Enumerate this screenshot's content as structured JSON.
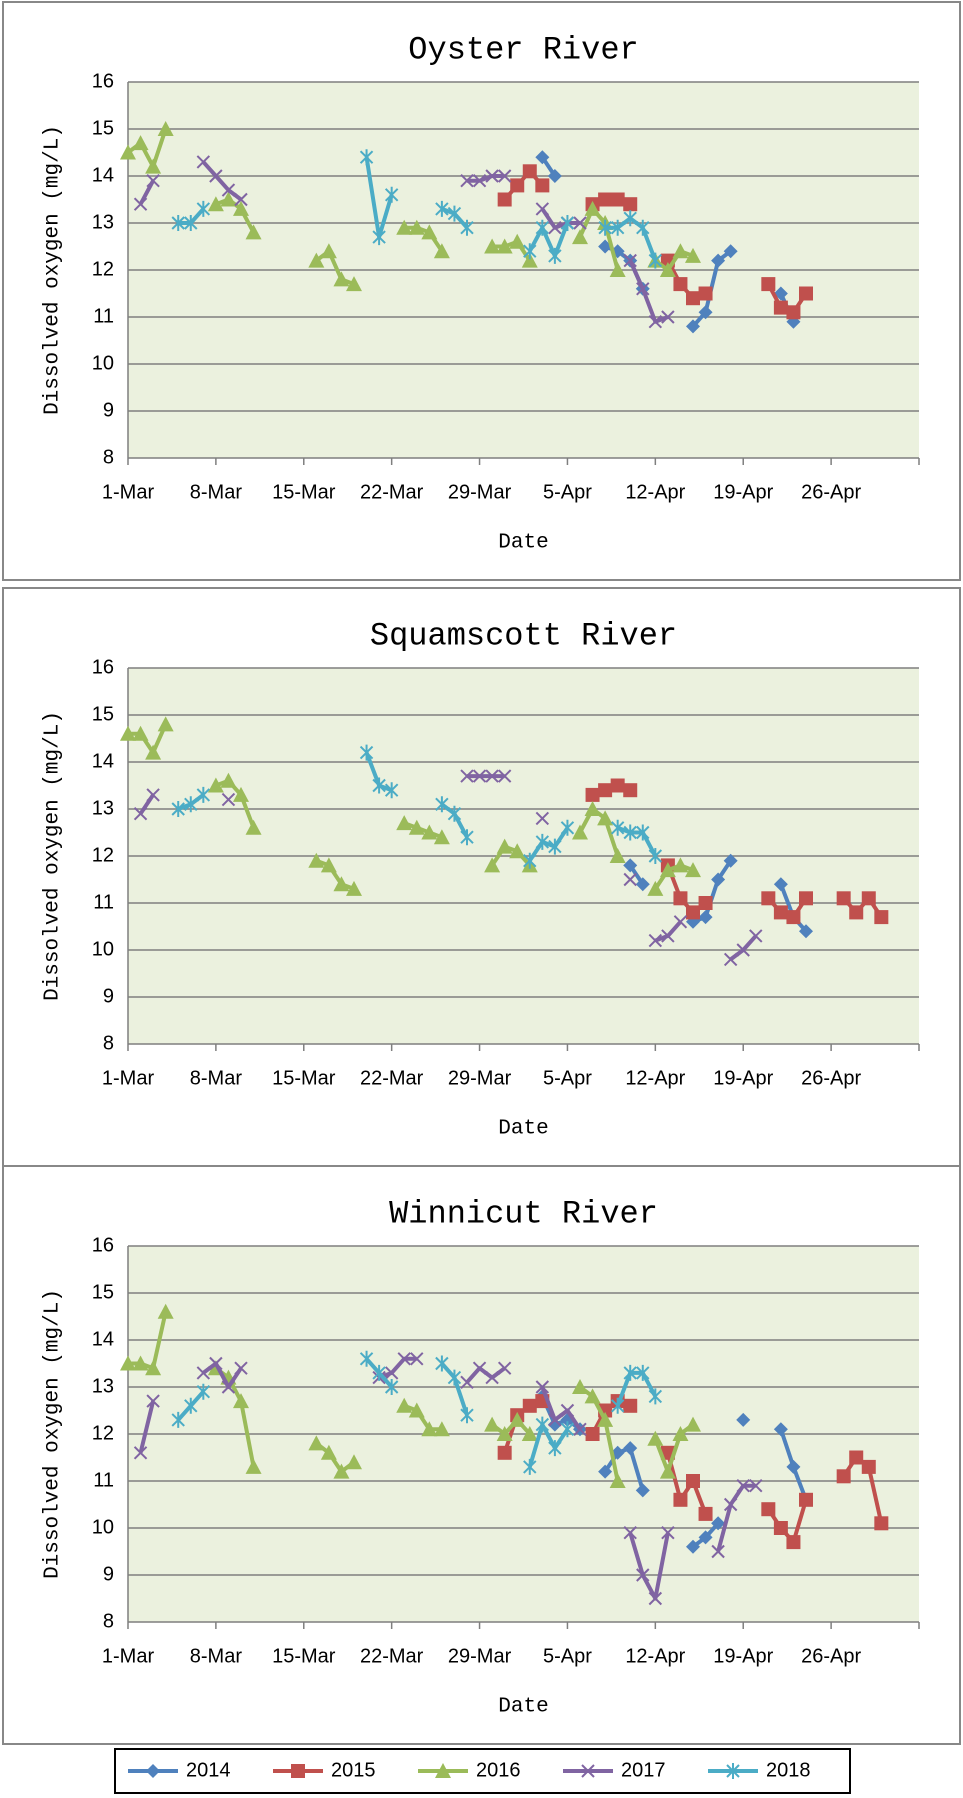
{
  "chart_data": [
    {
      "type": "line",
      "title": "Oyster River",
      "xlabel": "Date",
      "ylabel": "Dissolved oxygen (mg/L)",
      "xlim": [
        "1-Mar",
        "3-May"
      ],
      "xticks": [
        "1-Mar",
        "8-Mar",
        "15-Mar",
        "22-Mar",
        "29-Mar",
        "5-Apr",
        "12-Apr",
        "19-Apr",
        "26-Apr"
      ],
      "ylim": [
        8,
        16
      ],
      "yticks": [
        8,
        9,
        10,
        11,
        12,
        13,
        14,
        15,
        16
      ],
      "grid": true,
      "series": [
        {
          "name": "2014",
          "color": "#4f81bd",
          "x": [
            "3-Apr",
            "4-Apr",
            null,
            "8-Apr",
            "9-Apr",
            "10-Apr",
            "11-Apr",
            null,
            "15-Apr",
            "16-Apr",
            "17-Apr",
            "18-Apr",
            null,
            "22-Apr",
            "23-Apr"
          ],
          "values": [
            14.4,
            14.0,
            null,
            12.5,
            12.4,
            12.2,
            11.6,
            null,
            10.8,
            11.1,
            12.2,
            12.4,
            null,
            11.5,
            10.9
          ]
        },
        {
          "name": "2015",
          "color": "#c0504d",
          "x": [
            "31-Mar",
            "1-Apr",
            "2-Apr",
            "3-Apr",
            null,
            "7-Apr",
            "8-Apr",
            "9-Apr",
            "10-Apr",
            null,
            "13-Apr",
            "14-Apr",
            "15-Apr",
            "16-Apr",
            null,
            "21-Apr",
            "22-Apr",
            "23-Apr",
            "24-Apr"
          ],
          "values": [
            13.5,
            13.8,
            14.1,
            13.8,
            null,
            13.4,
            13.5,
            13.5,
            13.4,
            null,
            12.2,
            11.7,
            11.4,
            11.5,
            null,
            11.7,
            11.2,
            11.1,
            11.5
          ]
        },
        {
          "name": "2016",
          "color": "#9bbb59",
          "x": [
            "1-Mar",
            "2-Mar",
            "3-Mar",
            "4-Mar",
            null,
            "8-Mar",
            "9-Mar",
            "10-Mar",
            "11-Mar",
            null,
            "16-Mar",
            "17-Mar",
            "18-Mar",
            "19-Mar",
            null,
            "23-Mar",
            "24-Mar",
            "25-Mar",
            "26-Mar",
            null,
            "30-Mar",
            "31-Mar",
            "1-Apr",
            "2-Apr",
            null,
            "6-Apr",
            "7-Apr",
            "8-Apr",
            "9-Apr",
            null,
            "12-Apr",
            "13-Apr",
            "14-Apr",
            "15-Apr"
          ],
          "values": [
            14.5,
            14.7,
            14.2,
            15.0,
            null,
            13.4,
            13.5,
            13.3,
            12.8,
            null,
            12.2,
            12.4,
            11.8,
            11.7,
            null,
            12.9,
            12.9,
            12.8,
            12.4,
            null,
            12.5,
            12.5,
            12.6,
            12.2,
            null,
            12.7,
            13.3,
            13.0,
            12.0,
            null,
            12.2,
            12.0,
            12.4,
            12.3
          ]
        },
        {
          "name": "2017",
          "color": "#8064a2",
          "x": [
            "2-Mar",
            "3-Mar",
            null,
            "7-Mar",
            "8-Mar",
            "9-Mar",
            "10-Mar",
            null,
            "28-Mar",
            "29-Mar",
            "30-Mar",
            "31-Mar",
            null,
            "3-Apr",
            "4-Apr",
            "5-Apr",
            "6-Apr",
            null,
            "10-Apr",
            "11-Apr",
            "12-Apr",
            "13-Apr"
          ],
          "values": [
            13.4,
            13.9,
            null,
            14.3,
            14.0,
            13.7,
            13.5,
            null,
            13.9,
            13.9,
            14.0,
            14.0,
            null,
            13.3,
            12.9,
            13.0,
            13.0,
            null,
            12.2,
            11.6,
            10.9,
            11.0
          ]
        },
        {
          "name": "2018",
          "color": "#4bacc6",
          "x": [
            "5-Mar",
            "6-Mar",
            "7-Mar",
            null,
            "20-Mar",
            "21-Mar",
            "22-Mar",
            null,
            "26-Mar",
            "27-Mar",
            "28-Mar",
            null,
            "2-Apr",
            "3-Apr",
            "4-Apr",
            "5-Apr",
            null,
            "8-Apr",
            "9-Apr",
            "10-Apr",
            "11-Apr",
            "12-Apr"
          ],
          "values": [
            13.0,
            13.0,
            13.3,
            null,
            14.4,
            12.7,
            13.6,
            null,
            13.3,
            13.2,
            12.9,
            null,
            12.4,
            12.9,
            12.3,
            13.0,
            null,
            12.9,
            12.9,
            13.1,
            12.9,
            12.2
          ]
        }
      ]
    },
    {
      "type": "line",
      "title": "Squamscott River",
      "xlabel": "Date",
      "ylabel": "Dissolved oxygen (mg/L)",
      "xlim": [
        "1-Mar",
        "3-May"
      ],
      "xticks": [
        "1-Mar",
        "8-Mar",
        "15-Mar",
        "22-Mar",
        "29-Mar",
        "5-Apr",
        "12-Apr",
        "19-Apr",
        "26-Apr"
      ],
      "ylim": [
        8,
        16
      ],
      "yticks": [
        8,
        9,
        10,
        11,
        12,
        13,
        14,
        15,
        16
      ],
      "grid": true,
      "series": [
        {
          "name": "2014",
          "color": "#4f81bd",
          "x": [
            "10-Apr",
            "11-Apr",
            null,
            "15-Apr",
            "16-Apr",
            "17-Apr",
            "18-Apr",
            null,
            "22-Apr",
            "23-Apr",
            "24-Apr"
          ],
          "values": [
            11.8,
            11.4,
            null,
            10.6,
            10.7,
            11.5,
            11.9,
            null,
            11.4,
            10.7,
            10.4
          ]
        },
        {
          "name": "2015",
          "color": "#c0504d",
          "x": [
            "7-Apr",
            "8-Apr",
            "9-Apr",
            "10-Apr",
            null,
            "13-Apr",
            "14-Apr",
            "15-Apr",
            "16-Apr",
            null,
            "21-Apr",
            "22-Apr",
            "23-Apr",
            "24-Apr",
            null,
            "27-Apr",
            "28-Apr",
            "29-Apr",
            "30-Apr"
          ],
          "values": [
            13.3,
            13.4,
            13.5,
            13.4,
            null,
            11.8,
            11.1,
            10.8,
            11.0,
            null,
            11.1,
            10.8,
            10.7,
            11.1,
            null,
            11.1,
            10.8,
            11.1,
            10.7
          ]
        },
        {
          "name": "2016",
          "color": "#9bbb59",
          "x": [
            "1-Mar",
            "2-Mar",
            "3-Mar",
            "4-Mar",
            null,
            "8-Mar",
            "9-Mar",
            "10-Mar",
            "11-Mar",
            null,
            "16-Mar",
            "17-Mar",
            "18-Mar",
            "19-Mar",
            null,
            "23-Mar",
            "24-Mar",
            "25-Mar",
            "26-Mar",
            null,
            "30-Mar",
            "31-Mar",
            "1-Apr",
            "2-Apr",
            null,
            "6-Apr",
            "7-Apr",
            "8-Apr",
            "9-Apr",
            null,
            "12-Apr",
            "13-Apr",
            "14-Apr",
            "15-Apr"
          ],
          "values": [
            14.6,
            14.6,
            14.2,
            14.8,
            null,
            13.5,
            13.6,
            13.3,
            12.6,
            null,
            11.9,
            11.8,
            11.4,
            11.3,
            null,
            12.7,
            12.6,
            12.5,
            12.4,
            null,
            11.8,
            12.2,
            12.1,
            11.8,
            null,
            12.5,
            13.0,
            12.8,
            12.0,
            null,
            11.3,
            11.7,
            11.8,
            11.7
          ]
        },
        {
          "name": "2017",
          "color": "#8064a2",
          "x": [
            "2-Mar",
            "3-Mar",
            null,
            "9-Mar",
            null,
            "28-Mar",
            "29-Mar",
            "30-Mar",
            "31-Mar",
            null,
            "3-Apr",
            null,
            "10-Apr",
            null,
            "12-Apr",
            "13-Apr",
            "14-Apr",
            null,
            "18-Apr",
            "19-Apr",
            "20-Apr"
          ],
          "values": [
            12.9,
            13.3,
            null,
            13.2,
            null,
            13.7,
            13.7,
            13.7,
            13.7,
            null,
            12.8,
            null,
            11.5,
            null,
            10.2,
            10.3,
            10.6,
            null,
            9.8,
            10.0,
            10.3
          ]
        },
        {
          "name": "2018",
          "color": "#4bacc6",
          "x": [
            "5-Mar",
            "6-Mar",
            "7-Mar",
            null,
            "20-Mar",
            "21-Mar",
            "22-Mar",
            null,
            "26-Mar",
            "27-Mar",
            "28-Mar",
            null,
            "2-Apr",
            "3-Apr",
            "4-Apr",
            "5-Apr",
            null,
            "9-Apr",
            "10-Apr",
            "11-Apr",
            "12-Apr"
          ],
          "values": [
            13.0,
            13.1,
            13.3,
            null,
            14.2,
            13.5,
            13.4,
            null,
            13.1,
            12.9,
            12.4,
            null,
            11.9,
            12.3,
            12.2,
            12.6,
            null,
            12.6,
            12.5,
            12.5,
            12.0
          ]
        }
      ]
    },
    {
      "type": "line",
      "title": "Winnicut River",
      "xlabel": "Date",
      "ylabel": "Dissolved oxygen (mg/L)",
      "xlim": [
        "1-Mar",
        "3-May"
      ],
      "xticks": [
        "1-Mar",
        "8-Mar",
        "15-Mar",
        "22-Mar",
        "29-Mar",
        "5-Apr",
        "12-Apr",
        "19-Apr",
        "26-Apr"
      ],
      "ylim": [
        8,
        16
      ],
      "yticks": [
        8,
        9,
        10,
        11,
        12,
        13,
        14,
        15,
        16
      ],
      "grid": true,
      "series": [
        {
          "name": "2014",
          "color": "#4f81bd",
          "x": [
            "3-Apr",
            "4-Apr",
            "5-Apr",
            "6-Apr",
            null,
            "8-Apr",
            "9-Apr",
            "10-Apr",
            "11-Apr",
            null,
            "15-Apr",
            "16-Apr",
            "17-Apr",
            null,
            "19-Apr",
            null,
            "22-Apr",
            "23-Apr",
            "24-Apr"
          ],
          "values": [
            12.8,
            12.2,
            12.3,
            12.1,
            null,
            11.2,
            11.6,
            11.7,
            10.8,
            null,
            9.6,
            9.8,
            10.1,
            null,
            12.3,
            null,
            12.1,
            11.3,
            10.6
          ]
        },
        {
          "name": "2015",
          "color": "#c0504d",
          "x": [
            "31-Mar",
            "1-Apr",
            "2-Apr",
            "3-Apr",
            null,
            "7-Apr",
            "8-Apr",
            "9-Apr",
            "10-Apr",
            null,
            "13-Apr",
            "14-Apr",
            "15-Apr",
            "16-Apr",
            null,
            "21-Apr",
            "22-Apr",
            "23-Apr",
            "24-Apr",
            null,
            "27-Apr",
            "28-Apr",
            "29-Apr",
            "30-Apr"
          ],
          "values": [
            11.6,
            12.4,
            12.6,
            12.7,
            null,
            12.0,
            12.5,
            12.7,
            12.6,
            null,
            11.6,
            10.6,
            11.0,
            10.3,
            null,
            10.4,
            10.0,
            9.7,
            10.6,
            null,
            11.1,
            11.5,
            11.3,
            10.1
          ]
        },
        {
          "name": "2016",
          "color": "#9bbb59",
          "x": [
            "1-Mar",
            "2-Mar",
            "3-Mar",
            "4-Mar",
            null,
            "8-Mar",
            "9-Mar",
            "10-Mar",
            "11-Mar",
            null,
            "16-Mar",
            "17-Mar",
            "18-Mar",
            "19-Mar",
            null,
            "23-Mar",
            "24-Mar",
            "25-Mar",
            "26-Mar",
            null,
            "30-Mar",
            "31-Mar",
            "1-Apr",
            "2-Apr",
            null,
            "6-Apr",
            "7-Apr",
            "8-Apr",
            "9-Apr",
            null,
            "12-Apr",
            "13-Apr",
            "14-Apr",
            "15-Apr"
          ],
          "values": [
            13.5,
            13.5,
            13.4,
            14.6,
            null,
            13.4,
            13.2,
            12.7,
            11.3,
            null,
            11.8,
            11.6,
            11.2,
            11.4,
            null,
            12.6,
            12.5,
            12.1,
            12.1,
            null,
            12.2,
            12.0,
            12.3,
            12.0,
            null,
            13.0,
            12.8,
            12.3,
            11.0,
            null,
            11.9,
            11.2,
            12.0,
            12.2
          ]
        },
        {
          "name": "2017",
          "color": "#8064a2",
          "x": [
            "2-Mar",
            "3-Mar",
            null,
            "7-Mar",
            "8-Mar",
            "9-Mar",
            "10-Mar",
            null,
            "21-Mar",
            "22-Mar",
            "23-Mar",
            "24-Mar",
            null,
            "28-Mar",
            "29-Mar",
            "30-Mar",
            "31-Mar",
            null,
            "3-Apr",
            "4-Apr",
            "5-Apr",
            "6-Apr",
            null,
            "10-Apr",
            "11-Apr",
            "12-Apr",
            "13-Apr",
            null,
            "17-Apr",
            "18-Apr",
            "19-Apr",
            "20-Apr"
          ],
          "values": [
            11.6,
            12.7,
            null,
            13.3,
            13.5,
            13.0,
            13.4,
            null,
            13.2,
            13.3,
            13.6,
            13.6,
            null,
            13.1,
            13.4,
            13.2,
            13.4,
            null,
            13.0,
            12.3,
            12.5,
            12.1,
            null,
            9.9,
            9.0,
            8.5,
            9.9,
            null,
            9.5,
            10.5,
            10.9,
            10.9
          ]
        },
        {
          "name": "2018",
          "color": "#4bacc6",
          "x": [
            "5-Mar",
            "6-Mar",
            "7-Mar",
            null,
            "20-Mar",
            "21-Mar",
            "22-Mar",
            null,
            "26-Mar",
            "27-Mar",
            "28-Mar",
            null,
            "2-Apr",
            "3-Apr",
            "4-Apr",
            "5-Apr",
            null,
            "9-Apr",
            "10-Apr",
            "11-Apr",
            "12-Apr"
          ],
          "values": [
            12.3,
            12.6,
            12.9,
            null,
            13.6,
            13.3,
            13.0,
            null,
            13.5,
            13.2,
            12.4,
            null,
            11.3,
            12.2,
            11.7,
            12.1,
            null,
            12.6,
            13.3,
            13.3,
            12.8
          ]
        }
      ]
    }
  ]
}
